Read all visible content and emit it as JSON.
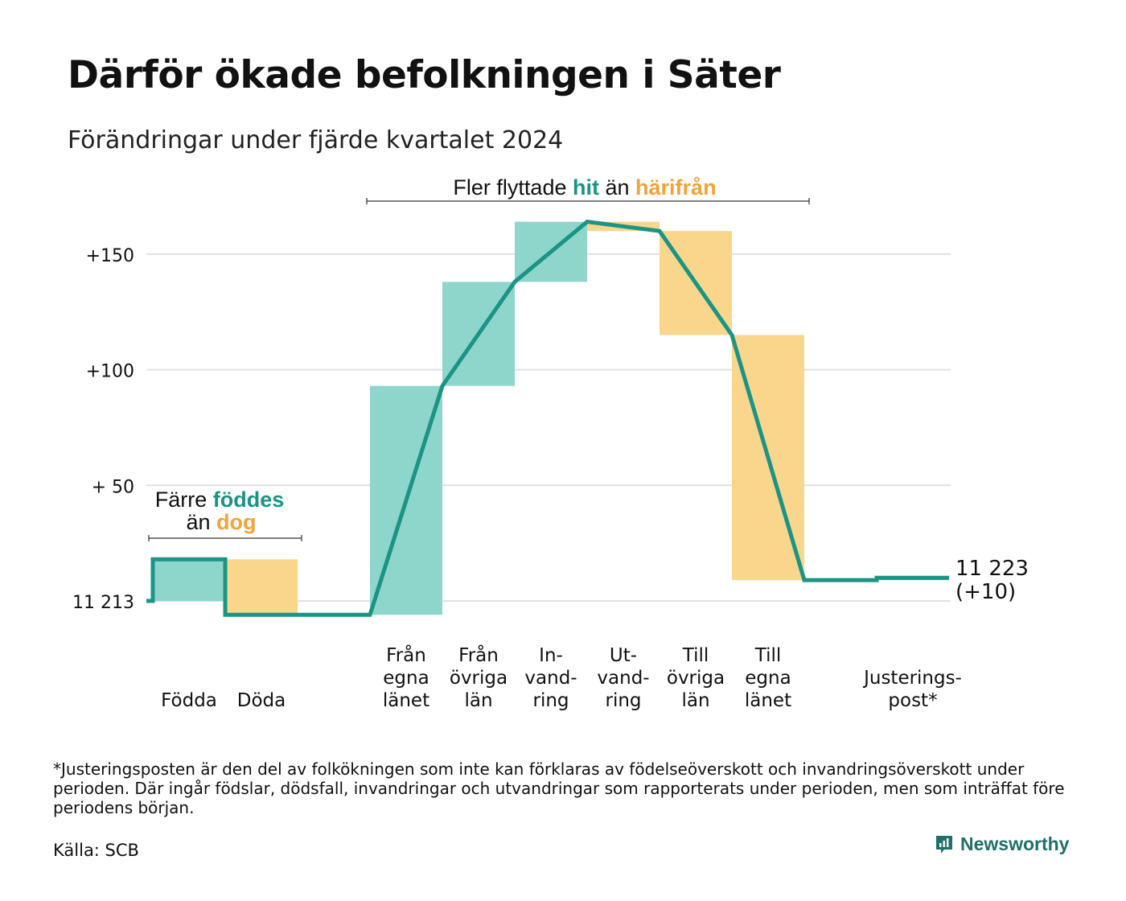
{
  "title": "Därför ökade befolkningen i Säter",
  "subtitle": "Förändringar under fjärde kvartalet 2024",
  "footnote": "*Justeringsposten är den del av folkökningen som inte kan förklaras av födelseöverskott och invandringsöverskott under perioden. Där ingår födslar, dödsfall, invandringar och utvandringar som rapporterats under perioden, men som inträffat före periodens början.",
  "source": "Källa: SCB",
  "brand": {
    "name": "Newsworthy",
    "icon": "newsworthy-logo-icon"
  },
  "colors": {
    "increase": "#8ed6cc",
    "decrease": "#f9d68c",
    "line": "#1a9484",
    "teal_text": "#1a9484",
    "orange_text": "#f2a33a",
    "grid": "#e1e1e1"
  },
  "annotations": {
    "births": {
      "line1_a": "Färre ",
      "line1_b": "föddes",
      "line2_a": "än ",
      "line2_b": "dog"
    },
    "migration": {
      "a": "Fler flyttade ",
      "b": "hit",
      "c": " än ",
      "d": "härifrån"
    }
  },
  "chart_data": {
    "type": "waterfall",
    "base": 11213,
    "y_ticks": [
      {
        "value": 0,
        "label": "11 213"
      },
      {
        "value": 50,
        "label": "+ 50"
      },
      {
        "value": 100,
        "label": "+100"
      },
      {
        "value": 150,
        "label": "+150"
      }
    ],
    "ylim": [
      -10,
      165
    ],
    "grid": true,
    "categories": [
      {
        "label": [
          "Födda"
        ],
        "start": 18,
        "end": 18,
        "from": 0,
        "to": 18,
        "kind": "increase"
      },
      {
        "label": [
          "Döda"
        ],
        "start": -6,
        "end": -6,
        "from": 18,
        "to": -6,
        "kind": "decrease"
      },
      {
        "label": [
          ""
        ],
        "start": -6,
        "end": -6,
        "from": -6,
        "to": -6,
        "kind": "none"
      },
      {
        "label": [
          "Från",
          "egna",
          "länet"
        ],
        "start": -6,
        "end": 93,
        "from": -6,
        "to": 93,
        "kind": "increase"
      },
      {
        "label": [
          "Från",
          "övriga",
          "län"
        ],
        "start": 93,
        "end": 138,
        "from": 93,
        "to": 138,
        "kind": "increase"
      },
      {
        "label": [
          "In-",
          "vand-",
          "ring"
        ],
        "start": 138,
        "end": 164,
        "from": 138,
        "to": 164,
        "kind": "increase"
      },
      {
        "label": [
          "Ut-",
          "vand-",
          "ring"
        ],
        "start": 164,
        "end": 160,
        "from": 164,
        "to": 160,
        "kind": "decrease"
      },
      {
        "label": [
          "Till",
          "övriga",
          "län"
        ],
        "start": 160,
        "end": 115,
        "from": 160,
        "to": 115,
        "kind": "decrease"
      },
      {
        "label": [
          "Till",
          "egna",
          "länet"
        ],
        "start": 115,
        "end": 9,
        "from": 115,
        "to": 9,
        "kind": "decrease"
      },
      {
        "label": [
          ""
        ],
        "start": 9,
        "end": 9,
        "from": 9,
        "to": 9,
        "kind": "none"
      },
      {
        "label": [
          "Justerings-",
          "post*"
        ],
        "start": 10,
        "end": 10,
        "from": 9,
        "to": 10,
        "kind": "increase"
      }
    ],
    "end_label": {
      "line1": "11 223",
      "line2": "(+10)"
    }
  }
}
